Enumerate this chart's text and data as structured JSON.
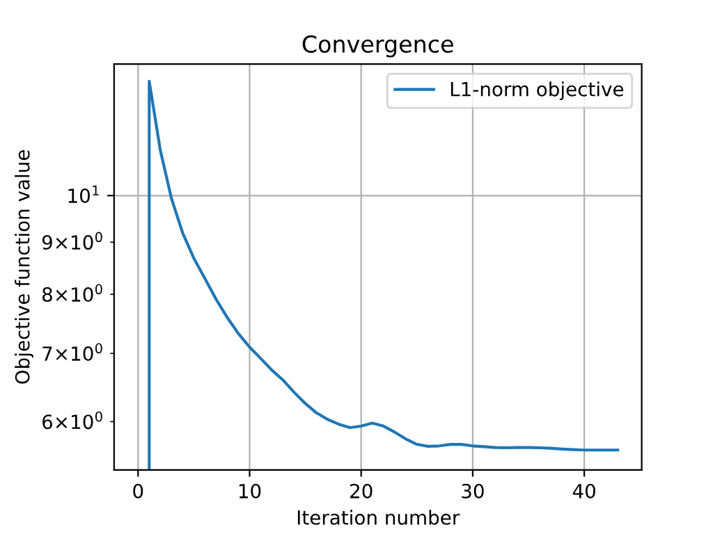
{
  "chart_data": {
    "type": "line",
    "title": "Convergence",
    "xlabel": "Iteration number",
    "ylabel": "Objective function value",
    "x": [
      1,
      1,
      2,
      3,
      4,
      5,
      6,
      7,
      8,
      9,
      10,
      11,
      12,
      13,
      14,
      15,
      16,
      17,
      18,
      19,
      20,
      21,
      22,
      23,
      24,
      25,
      26,
      27,
      28,
      29,
      30,
      31,
      32,
      33,
      34,
      35,
      36,
      37,
      38,
      39,
      40,
      41,
      42,
      43
    ],
    "series": [
      {
        "name": "L1-norm objective",
        "color": "#1f77b4",
        "values": [
          5.38,
          12.95,
          11.07,
          9.93,
          9.19,
          8.68,
          8.29,
          7.91,
          7.59,
          7.32,
          7.1,
          6.92,
          6.74,
          6.59,
          6.41,
          6.25,
          6.12,
          6.03,
          5.965,
          5.92,
          5.94,
          5.98,
          5.94,
          5.86,
          5.77,
          5.7,
          5.675,
          5.68,
          5.7,
          5.7,
          5.68,
          5.67,
          5.66,
          5.656,
          5.66,
          5.66,
          5.656,
          5.65,
          5.64,
          5.633,
          5.627,
          5.627,
          5.627,
          5.627
        ]
      }
    ],
    "log": "y",
    "xlim": [
      -2.15,
      45.15
    ],
    "ylim": [
      5.38,
      13.46
    ],
    "xticks": [
      0,
      10,
      20,
      30,
      40
    ],
    "yticks": [
      {
        "value": 6,
        "label": "6×10$^{0}$"
      },
      {
        "value": 7,
        "label": "7×10$^{0}$"
      },
      {
        "value": 8,
        "label": "8×10$^{0}$"
      },
      {
        "value": 9,
        "label": "9×10$^{0}$"
      },
      {
        "value": 10,
        "label": "10$^{1}$"
      }
    ],
    "grid": true,
    "legend": "top right",
    "marker": "none",
    "line_style": "solid"
  }
}
